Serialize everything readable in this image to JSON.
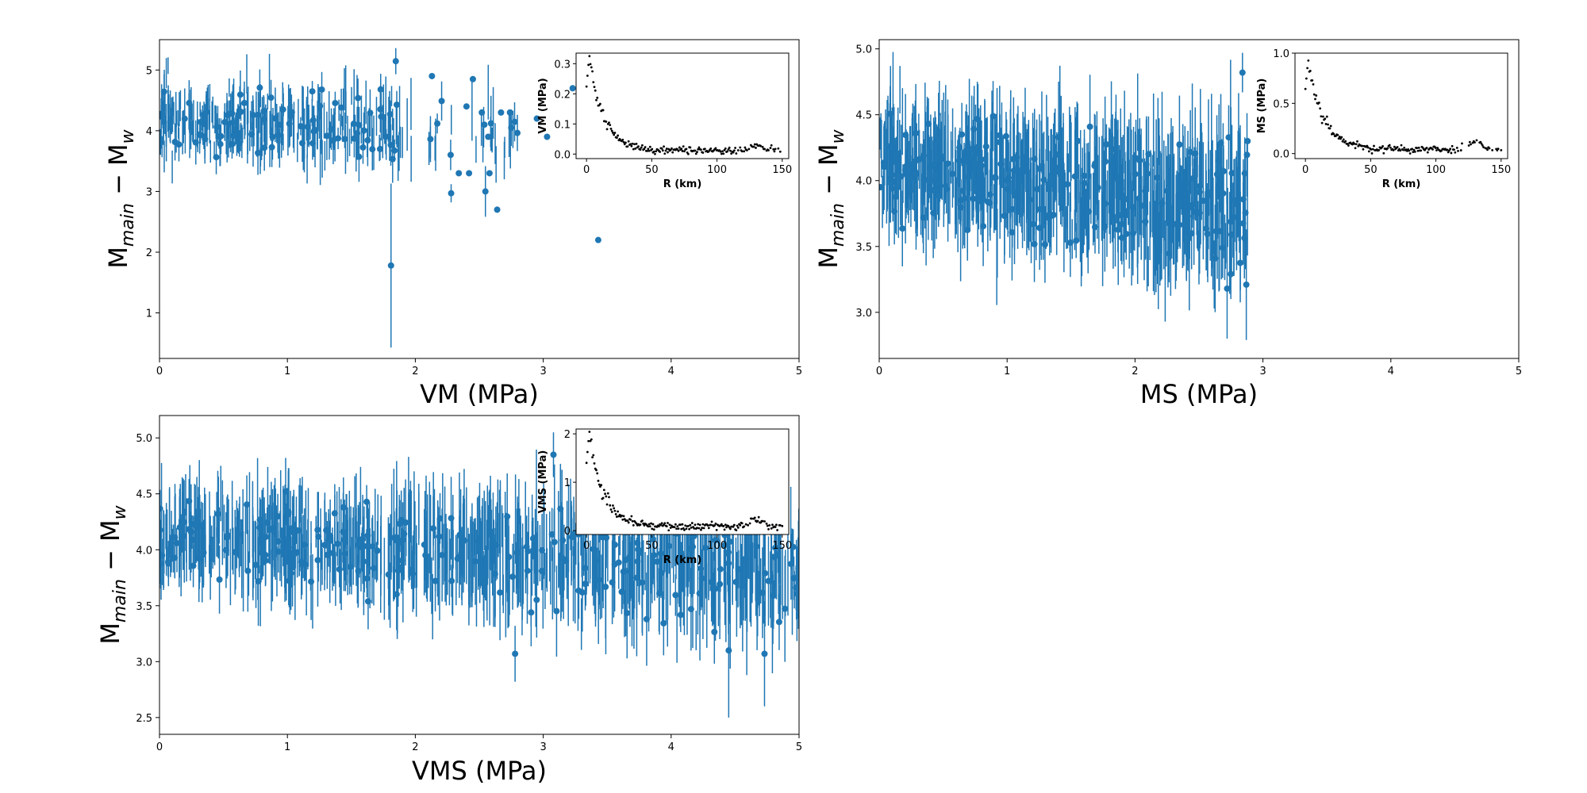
{
  "colors": {
    "series": "#1f77b4",
    "inset_points": "#000000"
  },
  "chart_data": [
    {
      "type": "scatter",
      "error_bars": true,
      "marker": "circle",
      "xlabel": "VM (MPa)",
      "ylabel_main": "M",
      "ylabel_sub_main": "main",
      "ylabel_minus": " − M",
      "ylabel_sub_w": "w",
      "xlim": [
        0,
        5
      ],
      "ylim": [
        0.25,
        5.5
      ],
      "xticks": [
        0,
        1,
        2,
        3,
        4,
        5
      ],
      "yticks": [
        1,
        2,
        3,
        4,
        5
      ],
      "grid": false,
      "data_generation": {
        "seed": 11,
        "n": 400,
        "xmax": 2.8,
        "sparse_after": 1.9,
        "base": 4.2,
        "slope": -0.1,
        "noise": 0.35,
        "err": 0.28,
        "err_growth": 0.15
      },
      "points": [
        {
          "x": 1.81,
          "y": 1.78,
          "err": 1.35
        },
        {
          "x": 2.13,
          "y": 4.9,
          "err": 0.05
        },
        {
          "x": 2.28,
          "y": 2.97,
          "err": 0.15
        },
        {
          "x": 2.34,
          "y": 3.3,
          "err": 0.0
        },
        {
          "x": 2.42,
          "y": 3.3,
          "err": 0.0
        },
        {
          "x": 2.45,
          "y": 4.85,
          "err": 0.0
        },
        {
          "x": 2.4,
          "y": 4.4,
          "err": 0.0
        },
        {
          "x": 2.52,
          "y": 4.3,
          "err": 0.0
        },
        {
          "x": 2.54,
          "y": 4.1,
          "err": 0.0
        },
        {
          "x": 2.57,
          "y": 3.9,
          "err": 0.0
        },
        {
          "x": 2.58,
          "y": 3.3,
          "err": 0.0
        },
        {
          "x": 2.64,
          "y": 2.7,
          "err": 0.0
        },
        {
          "x": 2.67,
          "y": 4.3,
          "err": 0.0
        },
        {
          "x": 2.74,
          "y": 4.3,
          "err": 0.0
        },
        {
          "x": 2.75,
          "y": 4.05,
          "err": 0.3
        },
        {
          "x": 2.95,
          "y": 4.2,
          "err": 0.0
        },
        {
          "x": 3.03,
          "y": 3.9,
          "err": 0.0
        },
        {
          "x": 3.23,
          "y": 4.7,
          "err": 0.0
        },
        {
          "x": 3.43,
          "y": 2.2,
          "err": 0.0
        }
      ],
      "inset": {
        "xlabel": "R (km)",
        "ylabel": "VM (MPa)",
        "xlim": [
          -8,
          155
        ],
        "ylim": [
          -0.015,
          0.335
        ],
        "xticks": [
          0,
          50,
          100,
          150
        ],
        "yticks": [
          0.0,
          0.1,
          0.2,
          0.3
        ],
        "curve": {
          "peak": 0.32,
          "floor": 0.012,
          "decay": 11,
          "bump_amp": 0.02,
          "bump_center": 132,
          "bump_width": 6,
          "noise": 0.006,
          "seed": 21
        }
      }
    },
    {
      "type": "scatter",
      "error_bars": true,
      "marker": "circle",
      "xlabel": "MS (MPa)",
      "ylabel_main": "M",
      "ylabel_sub_main": "main",
      "ylabel_minus": " − M",
      "ylabel_sub_w": "w",
      "xlim": [
        0,
        5
      ],
      "ylim": [
        2.65,
        5.07
      ],
      "xticks": [
        0,
        1,
        2,
        3,
        4,
        5
      ],
      "yticks": [
        3.0,
        3.5,
        4.0,
        4.5,
        5.0
      ],
      "grid": false,
      "data_generation": {
        "seed": 37,
        "n": 850,
        "xmax": 2.88,
        "sparse_after": 99,
        "base": 4.15,
        "slope": -0.13,
        "noise": 0.26,
        "err": 0.3,
        "err_growth": 0.06
      },
      "points": [
        {
          "x": 2.87,
          "y": 3.21,
          "err": 0.42
        },
        {
          "x": 2.72,
          "y": 3.18,
          "err": 0.38
        },
        {
          "x": 2.88,
          "y": 4.3,
          "err": 0.0
        },
        {
          "x": 0.01,
          "y": 3.95,
          "err": 0.0
        },
        {
          "x": 2.84,
          "y": 4.82,
          "err": 0.15
        }
      ],
      "inset": {
        "xlabel": "R (km)",
        "ylabel": "MS (MPa)",
        "xlim": [
          -8,
          155
        ],
        "ylim": [
          -0.05,
          1.0
        ],
        "xticks": [
          0,
          50,
          100,
          150
        ],
        "yticks": [
          0.0,
          0.5,
          1.0
        ],
        "curve": {
          "peak": 0.92,
          "floor": 0.04,
          "decay": 12,
          "bump_amp": 0.08,
          "bump_center": 130,
          "bump_width": 7,
          "noise": 0.02,
          "seed": 53
        }
      }
    },
    {
      "type": "scatter",
      "error_bars": true,
      "marker": "circle",
      "xlabel": "VMS (MPa)",
      "ylabel_main": "M",
      "ylabel_sub_main": "main",
      "ylabel_minus": " − M",
      "ylabel_sub_w": "w",
      "xlim": [
        0,
        5
      ],
      "ylim": [
        2.35,
        5.2
      ],
      "xticks": [
        0,
        1,
        2,
        3,
        4,
        5
      ],
      "yticks": [
        2.5,
        3.0,
        3.5,
        4.0,
        4.5,
        5.0
      ],
      "grid": false,
      "data_generation": {
        "seed": 73,
        "n": 1000,
        "xmax": 5.0,
        "sparse_after": 99,
        "base": 4.15,
        "slope": -0.07,
        "noise": 0.25,
        "err": 0.3,
        "err_growth": 0.06
      },
      "points": [
        {
          "x": 2.78,
          "y": 3.07,
          "err": 0.25
        },
        {
          "x": 4.45,
          "y": 3.1,
          "err": 0.6
        },
        {
          "x": 4.73,
          "y": 3.07,
          "err": 0.47
        },
        {
          "x": 0.02,
          "y": 3.95,
          "err": 0.0
        },
        {
          "x": 3.08,
          "y": 4.85,
          "err": 0.2
        }
      ],
      "inset": {
        "xlabel": "R (km)",
        "ylabel": "VMS (MPa)",
        "xlim": [
          -8,
          155
        ],
        "ylim": [
          -0.08,
          2.1
        ],
        "xticks": [
          0,
          50,
          100,
          150
        ],
        "yticks": [
          0,
          1,
          2
        ],
        "curve": {
          "peak": 2.0,
          "floor": 0.08,
          "decay": 11,
          "bump_amp": 0.15,
          "bump_center": 131,
          "bump_width": 6,
          "noise": 0.04,
          "seed": 91
        }
      }
    }
  ]
}
